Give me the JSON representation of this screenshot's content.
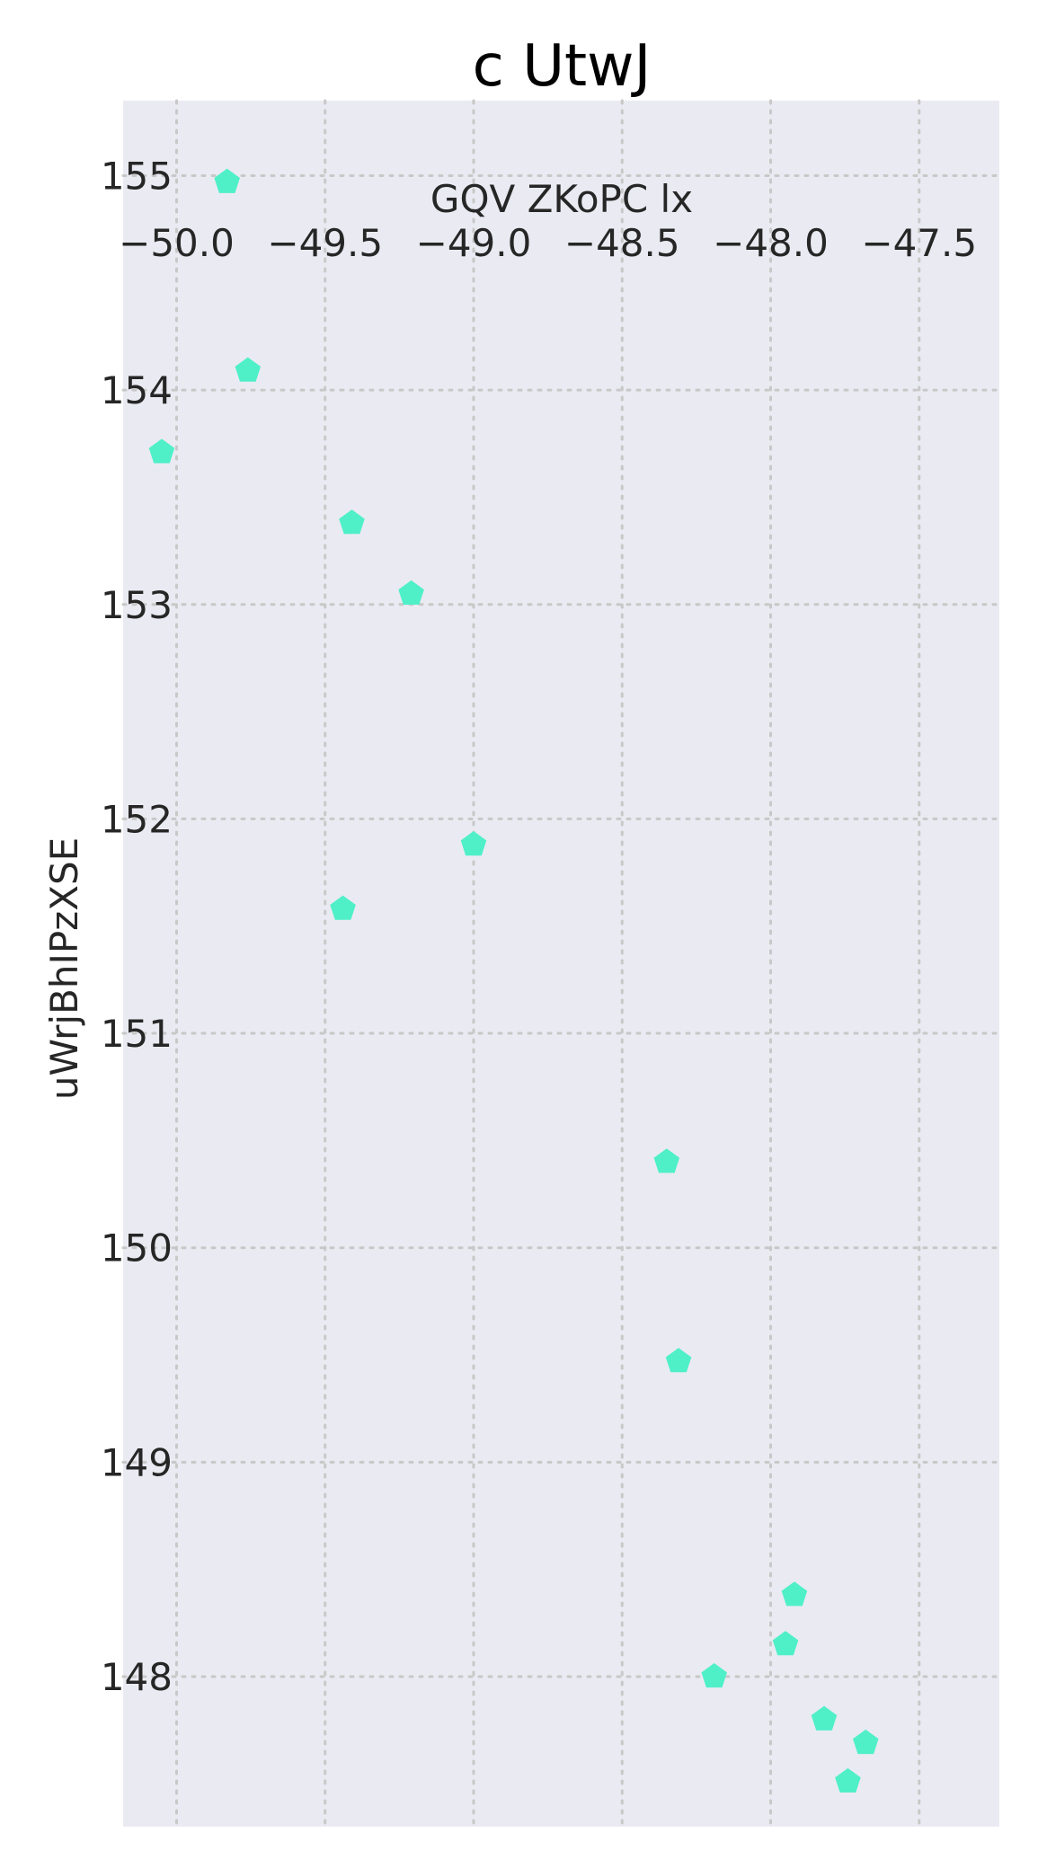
{
  "chart_data": {
    "type": "scatter",
    "title": "c UtwJ",
    "xlabel": "GQV ZKoPC lx",
    "ylabel": "uWrjBhIPzXSE",
    "x_axis_position": "top",
    "xlim": [
      -50.18,
      -47.23
    ],
    "ylim": [
      147.3,
      155.35
    ],
    "xticks": [
      -50.0,
      -49.5,
      -49.0,
      -48.5,
      -48.0,
      -47.5
    ],
    "xtick_labels": [
      "−50.0",
      "−49.5",
      "−49.0",
      "−48.5",
      "−48.0",
      "−47.5"
    ],
    "yticks": [
      148,
      149,
      150,
      151,
      152,
      153,
      154,
      155
    ],
    "ytick_labels": [
      "148",
      "149",
      "150",
      "151",
      "152",
      "153",
      "154",
      "155"
    ],
    "grid": true,
    "background_color": "#eaeaf2",
    "marker": "pentagon",
    "marker_color": "#4ff0c8",
    "points": [
      {
        "x": -49.83,
        "y": 154.97
      },
      {
        "x": -49.76,
        "y": 154.09
      },
      {
        "x": -50.05,
        "y": 153.71
      },
      {
        "x": -49.41,
        "y": 153.38
      },
      {
        "x": -49.21,
        "y": 153.05
      },
      {
        "x": -49.0,
        "y": 151.88
      },
      {
        "x": -49.44,
        "y": 151.58
      },
      {
        "x": -48.35,
        "y": 150.4
      },
      {
        "x": -48.31,
        "y": 149.47
      },
      {
        "x": -47.92,
        "y": 148.38
      },
      {
        "x": -47.95,
        "y": 148.15
      },
      {
        "x": -48.19,
        "y": 148.0
      },
      {
        "x": -47.82,
        "y": 147.8
      },
      {
        "x": -47.68,
        "y": 147.69
      },
      {
        "x": -47.74,
        "y": 147.51
      }
    ]
  }
}
